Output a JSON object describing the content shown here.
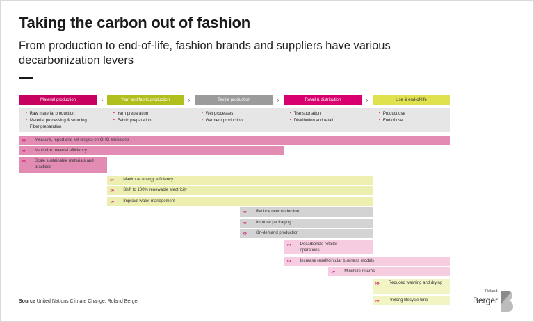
{
  "title": "Taking the carbon out of fashion",
  "subtitle": "From production to end-of-life, fashion brands and suppliers have various decarbonization levers",
  "colors": {
    "material": "#c8005f",
    "yarn": "#b1bf1c",
    "textile": "#9b9b9b",
    "retail": "#d8006f",
    "use": "#dfe24d",
    "material_light": "#e38cb3",
    "yarn_light": "#ecefb0",
    "textile_light": "#d3d3d3",
    "retail_light": "#f6cde0",
    "use_light": "#f3f4c4",
    "chevron": "#d0006f"
  },
  "chevron_glyph": "›",
  "arrow_glyph": "›››",
  "chart_data": {
    "type": "gantt",
    "stages": [
      {
        "label": "Material production",
        "color": "#c8005f",
        "items": [
          "Raw material production",
          "Material processing & sourcing",
          "Fiber preparation"
        ]
      },
      {
        "label": "Yarn and fabric production",
        "color": "#b1bf1c",
        "items": [
          "Yarn preparation",
          "Fabric preparation"
        ]
      },
      {
        "label": "Textile production",
        "color": "#9b9b9b",
        "items": [
          "Wet processes",
          "Garment production"
        ]
      },
      {
        "label": "Retail & distribution",
        "color": "#d8006f",
        "items": [
          "Transportation",
          "Distribution and retail"
        ]
      },
      {
        "label": "Use & end-of-life",
        "color": "#dfe24d",
        "items": [
          "Product use",
          "End of use"
        ]
      }
    ],
    "levers": [
      {
        "label": "Measure, report and set targets on GHG emissions",
        "start": 0,
        "end": 5,
        "color": "#e38cb3"
      },
      {
        "label": "Maximize material efficiency",
        "start": 0,
        "end": 3,
        "color": "#e38cb3"
      },
      {
        "label": "Scale sustainable materials and practices",
        "start": 0,
        "end": 1,
        "color": "#e38cb3"
      },
      {
        "label": "Maximize energy efficiency",
        "start": 1,
        "end": 4,
        "color": "#ecefb0"
      },
      {
        "label": "Shift to 100% renewable electricity",
        "start": 1,
        "end": 4,
        "color": "#ecefb0"
      },
      {
        "label": "Improve water management",
        "start": 1,
        "end": 4,
        "color": "#ecefb0"
      },
      {
        "label": "Reduce overproduction",
        "start": 2.5,
        "end": 4,
        "color": "#d3d3d3"
      },
      {
        "label": "Improve packaging",
        "start": 2.5,
        "end": 4,
        "color": "#d3d3d3"
      },
      {
        "label": "On-demand production",
        "start": 2.5,
        "end": 4,
        "color": "#d3d3d3"
      },
      {
        "label": "Decarbonize retailer operations",
        "start": 3,
        "end": 4,
        "color": "#f6cde0"
      },
      {
        "label": "Increase resell/circular business models",
        "start": 3,
        "end": 5,
        "color": "#f6cde0"
      },
      {
        "label": "Minimize returns",
        "start": 3.5,
        "end": 5,
        "color": "#f6cde0"
      },
      {
        "label": "Reduced washing and drying",
        "start": 4,
        "end": 5,
        "color": "#f3f4c4"
      },
      {
        "label": "Prolong lifecycle time",
        "start": 4,
        "end": 5,
        "color": "#f3f4c4"
      }
    ]
  },
  "source": {
    "label": "Source",
    "text": "United Nations Climate Change, Roland Berger"
  },
  "logo": {
    "small": "Roland",
    "big": "Berger"
  }
}
